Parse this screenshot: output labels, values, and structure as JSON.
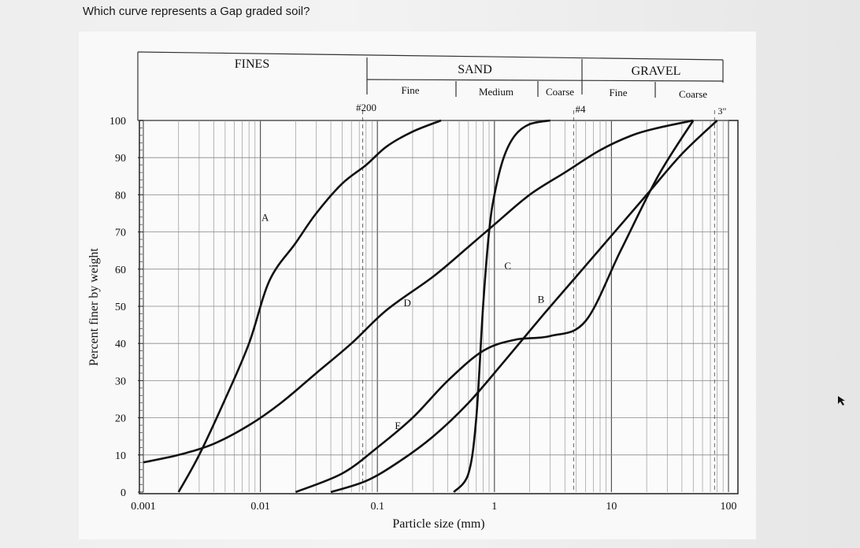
{
  "question": "Which curve represents a Gap graded soil?",
  "chart_data": {
    "type": "line",
    "xscale": "log",
    "xlim": [
      0.001,
      100
    ],
    "ylim": [
      0,
      100
    ],
    "xlabel": "Particle size (mm)",
    "ylabel": "Percent finer by weight",
    "x_ticks": [
      "0.001",
      "0.01",
      "0.1",
      "1",
      "10",
      "100"
    ],
    "y_ticks": [
      "0",
      "10",
      "20",
      "30",
      "40",
      "50",
      "60",
      "70",
      "80",
      "90",
      "100"
    ],
    "grid": true,
    "header": {
      "fines": "FINES",
      "sand": "SAND",
      "gravel": "GRAVEL",
      "sand_fine": "Fine",
      "sand_medium": "Medium",
      "sand_coarse": "Coarse",
      "gravel_fine": "Fine",
      "gravel_coarse": "Coarse",
      "sieve_200": "#200",
      "sieve_4": "#4",
      "size_3in": "3\""
    },
    "series": [
      {
        "name": "A",
        "x": [
          0.002,
          0.003,
          0.005,
          0.008,
          0.012,
          0.02,
          0.03,
          0.05,
          0.08,
          0.12,
          0.2,
          0.35
        ],
        "y": [
          0,
          10,
          25,
          40,
          57,
          67,
          75,
          83,
          88,
          93,
          97,
          100
        ]
      },
      {
        "name": "B",
        "x": [
          0.02,
          0.05,
          0.1,
          0.2,
          0.4,
          0.8,
          1.5,
          3,
          6,
          12,
          25,
          50
        ],
        "y": [
          0,
          5,
          12,
          20,
          30,
          38,
          41,
          42,
          46,
          65,
          85,
          100
        ]
      },
      {
        "name": "C",
        "x": [
          0.45,
          0.6,
          0.7,
          0.8,
          0.9,
          1.0,
          1.2,
          1.5,
          2.0,
          3.0
        ],
        "y": [
          0,
          5,
          20,
          50,
          70,
          80,
          90,
          96,
          99,
          100
        ]
      },
      {
        "name": "D",
        "x": [
          0.001,
          0.002,
          0.004,
          0.008,
          0.015,
          0.03,
          0.06,
          0.12,
          0.3,
          0.6,
          1.0,
          2.0,
          4.0,
          8.0,
          15.0,
          25.0,
          50.0
        ],
        "y": [
          8,
          10,
          13,
          18,
          24,
          32,
          40,
          49,
          58,
          66,
          72,
          80,
          86,
          92,
          96,
          98,
          100
        ]
      },
      {
        "name": "E",
        "x": [
          0.04,
          0.08,
          0.15,
          0.3,
          0.6,
          1.2,
          2.5,
          5,
          10,
          20,
          40,
          80
        ],
        "y": [
          0,
          3,
          8,
          15,
          24,
          35,
          47,
          58,
          69,
          80,
          91,
          100
        ]
      }
    ],
    "curve_labels": [
      "A",
      "B",
      "C",
      "D",
      "E"
    ]
  }
}
